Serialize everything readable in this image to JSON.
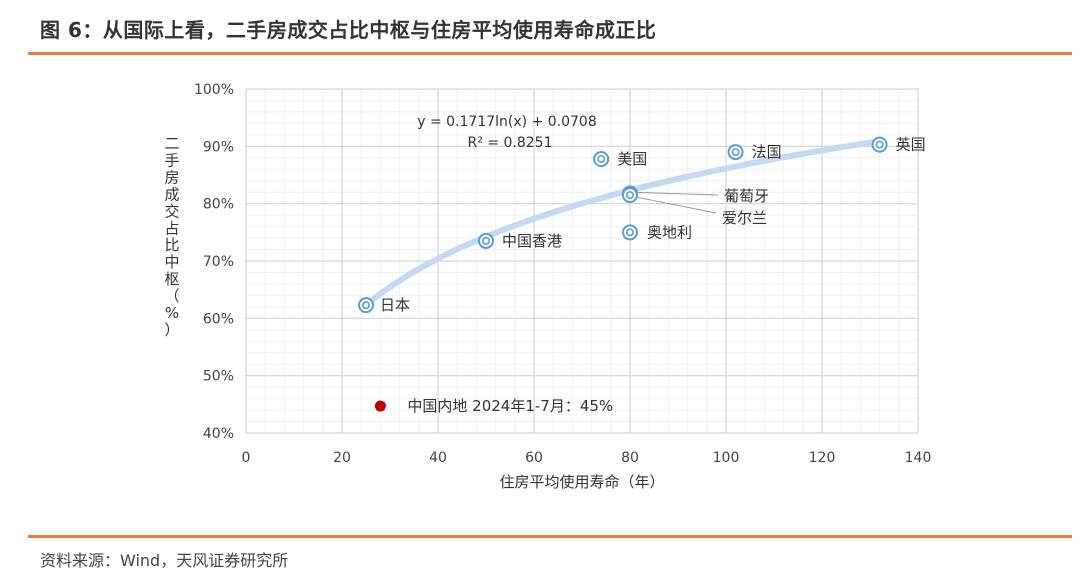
{
  "title": "图 6：从国际上看，二手房成交占比中枢与住房平均使用寿命成正比",
  "source": "资料来源：Wind，天风证券研究所",
  "chart_data": {
    "type": "scatter",
    "xlabel": "住房平均使用寿命（年）",
    "ylabel": "二手房成交占比中枢（%）",
    "xlim": [
      0,
      140
    ],
    "ylim": [
      40,
      100
    ],
    "x_ticks": [
      0,
      20,
      40,
      60,
      80,
      100,
      120,
      140
    ],
    "y_ticks": [
      40,
      50,
      60,
      70,
      80,
      90,
      100
    ],
    "y_tick_suffix": "%",
    "grid": true,
    "points": [
      {
        "label": "日本",
        "x": 25,
        "y": 62.3
      },
      {
        "label": "中国香港",
        "x": 50,
        "y": 73.5
      },
      {
        "label": "美国",
        "x": 74,
        "y": 87.8
      },
      {
        "label": "葡萄牙",
        "x": 80,
        "y": 81.8
      },
      {
        "label": "爱尔兰",
        "x": 80,
        "y": 81.5
      },
      {
        "label": "奥地利",
        "x": 80,
        "y": 75
      },
      {
        "label": "法国",
        "x": 102,
        "y": 89
      },
      {
        "label": "英国",
        "x": 132,
        "y": 90.3
      }
    ],
    "highlight_point": {
      "label": "中国内地 2024年1-7月：45%",
      "x": 28,
      "y": 44.7,
      "color": "#c00000"
    },
    "trendline": {
      "type": "log",
      "a": 0.1717,
      "b": 0.0708,
      "equation": "y = 0.1717ln(x) + 0.0708",
      "r2_text": "R² = 0.8251"
    },
    "colors": {
      "marker": "#5b9bd5",
      "trend": "#c5d9f1",
      "grid": "#e0e0e0",
      "highlight": "#c00000"
    }
  }
}
